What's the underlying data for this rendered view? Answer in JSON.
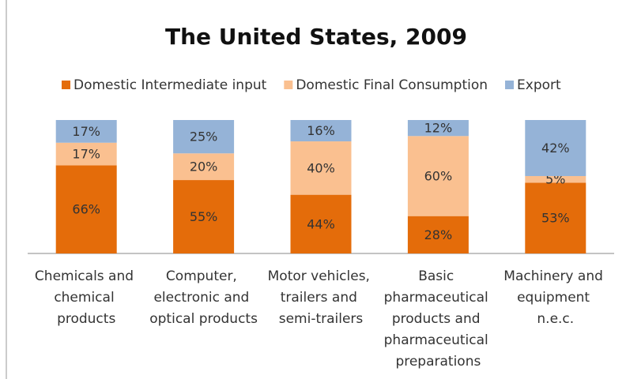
{
  "chart_data": {
    "type": "stacked_bar",
    "title": "The United States, 2009",
    "categories": [
      "Chemicals and chemical products",
      "Computer, electronic and optical products",
      "Motor vehicles, trailers and semi-trailers",
      "Basic pharmaceutical products and pharmaceutical preparations",
      "Machinery and equipment n.e.c."
    ],
    "series": [
      {
        "name": "Domestic Intermediate input",
        "color": "#e46c0a",
        "values": [
          66,
          55,
          44,
          28,
          53
        ],
        "value_labels": [
          "66%",
          "55%",
          "44%",
          "28%",
          "53%"
        ]
      },
      {
        "name": "Domestic Final Consumption",
        "color": "#fac090",
        "values": [
          17,
          20,
          40,
          60,
          5
        ],
        "value_labels": [
          "17%",
          "20%",
          "40%",
          "60%",
          "5%"
        ]
      },
      {
        "name": "Export",
        "color": "#95b3d7",
        "values": [
          17,
          25,
          16,
          12,
          42
        ],
        "value_labels": [
          "17%",
          "25%",
          "16%",
          "12%",
          "42%"
        ]
      }
    ],
    "legend": "top"
  }
}
